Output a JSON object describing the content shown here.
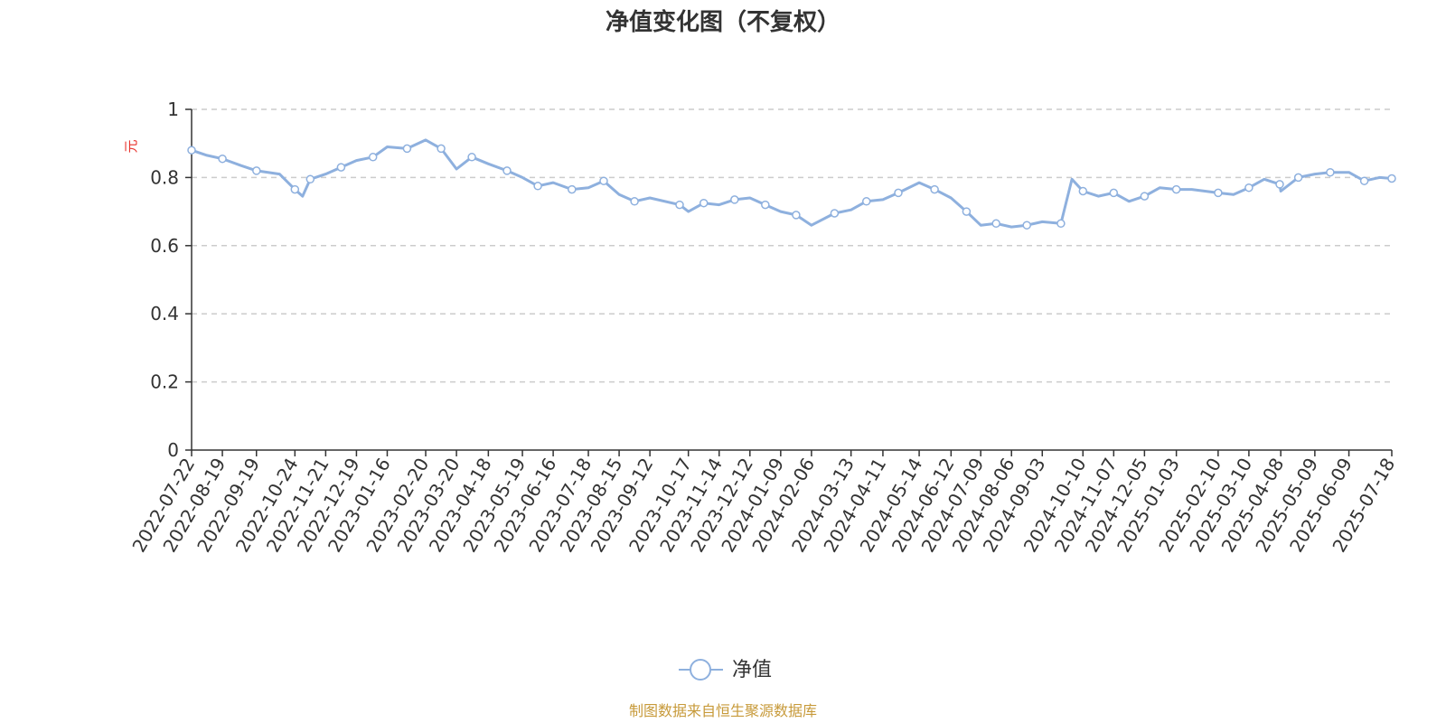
{
  "chart_data": {
    "type": "line",
    "title": "净值变化图（不复权）",
    "y_unit": "元",
    "ylim": [
      0,
      1
    ],
    "y_ticks": [
      "0",
      "0.2",
      "0.4",
      "0.6",
      "0.8",
      "1"
    ],
    "grid": true,
    "legend_position": "bottom-center",
    "x_ticks": [
      "2022-07-22",
      "2022-08-19",
      "2022-09-19",
      "2022-10-24",
      "2022-11-21",
      "2022-12-19",
      "2023-01-16",
      "2023-02-20",
      "2023-03-20",
      "2023-04-18",
      "2023-05-19",
      "2023-06-16",
      "2023-07-18",
      "2023-08-15",
      "2023-09-12",
      "2023-10-17",
      "2023-11-14",
      "2023-12-12",
      "2024-01-09",
      "2024-02-06",
      "2024-03-13",
      "2024-04-11",
      "2024-05-14",
      "2024-06-12",
      "2024-07-09",
      "2024-08-06",
      "2024-09-03",
      "2024-10-10",
      "2024-11-07",
      "2024-12-05",
      "2025-01-03",
      "2025-02-10",
      "2025-03-10",
      "2025-04-08",
      "2025-05-09",
      "2025-06-09",
      "2025-07-18"
    ],
    "series": [
      {
        "name": "净值",
        "color": "#8eb0de",
        "x": [
          "2022-07-22",
          "2022-08-05",
          "2022-08-19",
          "2022-09-05",
          "2022-09-19",
          "2022-10-10",
          "2022-10-24",
          "2022-10-31",
          "2022-11-07",
          "2022-11-21",
          "2022-12-05",
          "2022-12-19",
          "2023-01-03",
          "2023-01-16",
          "2023-02-03",
          "2023-02-20",
          "2023-03-06",
          "2023-03-20",
          "2023-04-03",
          "2023-04-18",
          "2023-05-05",
          "2023-05-19",
          "2023-06-02",
          "2023-06-16",
          "2023-07-03",
          "2023-07-18",
          "2023-08-01",
          "2023-08-15",
          "2023-08-29",
          "2023-09-12",
          "2023-10-09",
          "2023-10-17",
          "2023-10-31",
          "2023-11-14",
          "2023-11-28",
          "2023-12-12",
          "2023-12-26",
          "2024-01-09",
          "2024-01-23",
          "2024-02-06",
          "2024-02-27",
          "2024-03-13",
          "2024-03-27",
          "2024-04-11",
          "2024-04-25",
          "2024-05-14",
          "2024-05-28",
          "2024-06-12",
          "2024-06-26",
          "2024-07-09",
          "2024-07-23",
          "2024-08-06",
          "2024-08-20",
          "2024-09-03",
          "2024-09-20",
          "2024-09-30",
          "2024-10-10",
          "2024-10-24",
          "2024-11-07",
          "2024-11-21",
          "2024-12-05",
          "2024-12-19",
          "2025-01-03",
          "2025-01-17",
          "2025-02-10",
          "2025-02-24",
          "2025-03-10",
          "2025-03-24",
          "2025-04-07",
          "2025-04-08",
          "2025-04-24",
          "2025-05-09",
          "2025-05-23",
          "2025-06-09",
          "2025-06-23",
          "2025-07-07",
          "2025-07-18"
        ],
        "values": [
          0.88,
          0.865,
          0.855,
          0.835,
          0.82,
          0.81,
          0.765,
          0.745,
          0.795,
          0.81,
          0.83,
          0.85,
          0.86,
          0.89,
          0.885,
          0.91,
          0.885,
          0.825,
          0.86,
          0.84,
          0.82,
          0.8,
          0.775,
          0.785,
          0.765,
          0.77,
          0.79,
          0.75,
          0.73,
          0.74,
          0.72,
          0.7,
          0.725,
          0.72,
          0.735,
          0.74,
          0.72,
          0.7,
          0.69,
          0.66,
          0.695,
          0.705,
          0.73,
          0.735,
          0.755,
          0.785,
          0.765,
          0.74,
          0.7,
          0.66,
          0.665,
          0.655,
          0.66,
          0.67,
          0.665,
          0.795,
          0.76,
          0.745,
          0.755,
          0.73,
          0.745,
          0.77,
          0.765,
          0.765,
          0.755,
          0.75,
          0.77,
          0.795,
          0.78,
          0.76,
          0.8,
          0.81,
          0.815,
          0.815,
          0.79,
          0.8,
          0.797
        ]
      }
    ]
  },
  "legend": {
    "label": "净值"
  },
  "footer": {
    "text": "制图数据来自恒生聚源数据库"
  }
}
